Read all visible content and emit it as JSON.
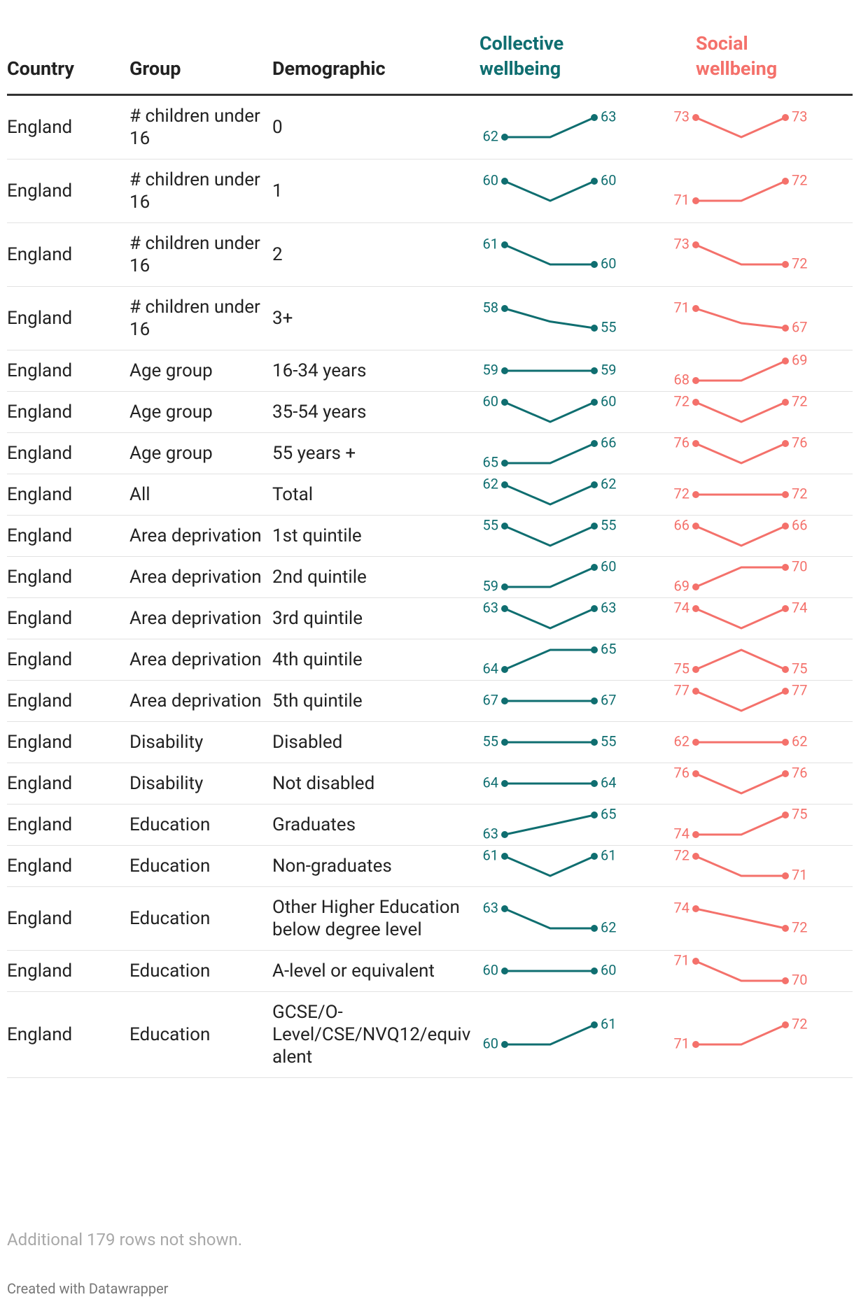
{
  "header": {
    "country": "Country",
    "group": "Group",
    "demographic": "Demographic",
    "collective": "Collective wellbeing",
    "social": "Social wellbeing"
  },
  "rows": [
    {
      "country": "England",
      "group": "# children under 16",
      "demographic": "0",
      "collective": [
        62,
        62,
        63
      ],
      "social": [
        73,
        72,
        73
      ]
    },
    {
      "country": "England",
      "group": "# children under 16",
      "demographic": "1",
      "collective": [
        60,
        59,
        60
      ],
      "social": [
        71,
        71,
        72
      ]
    },
    {
      "country": "England",
      "group": "# children under 16",
      "demographic": "2",
      "collective": [
        61,
        60,
        60
      ],
      "social": [
        73,
        72,
        72
      ]
    },
    {
      "country": "England",
      "group": "# children under 16",
      "demographic": "3+",
      "collective": [
        58,
        56,
        55
      ],
      "social": [
        71,
        68,
        67
      ]
    },
    {
      "country": "England",
      "group": "Age group",
      "demographic": "16-34 years",
      "collective": [
        59,
        59,
        59
      ],
      "social": [
        68,
        68,
        69
      ]
    },
    {
      "country": "England",
      "group": "Age group",
      "demographic": "35-54 years",
      "collective": [
        60,
        59,
        60
      ],
      "social": [
        72,
        71,
        72
      ]
    },
    {
      "country": "England",
      "group": "Age group",
      "demographic": "55 years +",
      "collective": [
        65,
        65,
        66
      ],
      "social": [
        76,
        75,
        76
      ]
    },
    {
      "country": "England",
      "group": "All",
      "demographic": "Total",
      "collective": [
        62,
        61,
        62
      ],
      "social": [
        72,
        72,
        72
      ]
    },
    {
      "country": "England",
      "group": "Area deprivation",
      "demographic": "1st quintile",
      "collective": [
        55,
        54,
        55
      ],
      "social": [
        66,
        65,
        66
      ]
    },
    {
      "country": "England",
      "group": "Area deprivation",
      "demographic": "2nd quintile",
      "collective": [
        59,
        59,
        60
      ],
      "social": [
        69,
        70,
        70
      ]
    },
    {
      "country": "England",
      "group": "Area deprivation",
      "demographic": "3rd quintile",
      "collective": [
        63,
        62,
        63
      ],
      "social": [
        74,
        73,
        74
      ]
    },
    {
      "country": "England",
      "group": "Area deprivation",
      "demographic": "4th quintile",
      "collective": [
        64,
        65,
        65
      ],
      "social": [
        75,
        76,
        75
      ]
    },
    {
      "country": "England",
      "group": "Area deprivation",
      "demographic": "5th quintile",
      "collective": [
        67,
        67,
        67
      ],
      "social": [
        77,
        76,
        77
      ]
    },
    {
      "country": "England",
      "group": "Disability",
      "demographic": "Disabled",
      "collective": [
        55,
        55,
        55
      ],
      "social": [
        62,
        62,
        62
      ]
    },
    {
      "country": "England",
      "group": "Disability",
      "demographic": "Not disabled",
      "collective": [
        64,
        64,
        64
      ],
      "social": [
        76,
        75,
        76
      ]
    },
    {
      "country": "England",
      "group": "Education",
      "demographic": "Graduates",
      "collective": [
        63,
        64,
        65
      ],
      "social": [
        74,
        74,
        75
      ]
    },
    {
      "country": "England",
      "group": "Education",
      "demographic": "Non-graduates",
      "collective": [
        61,
        60,
        61
      ],
      "social": [
        72,
        71,
        71
      ]
    },
    {
      "country": "England",
      "group": "Education",
      "demographic": "Other Higher Education below degree level",
      "collective": [
        63,
        62,
        62
      ],
      "social": [
        74,
        73,
        72
      ]
    },
    {
      "country": "England",
      "group": "Education",
      "demographic": "A-level or equivalent",
      "collective": [
        60,
        60,
        60
      ],
      "social": [
        71,
        70,
        70
      ]
    },
    {
      "country": "England",
      "group": "Education",
      "demographic": "GCSE/O-Level/CSE/NVQ12/equivalent",
      "collective": [
        60,
        60,
        61
      ],
      "social": [
        71,
        71,
        72
      ]
    }
  ],
  "note": "Additional 179 rows not shown.",
  "credit": "Created with Datawrapper"
}
